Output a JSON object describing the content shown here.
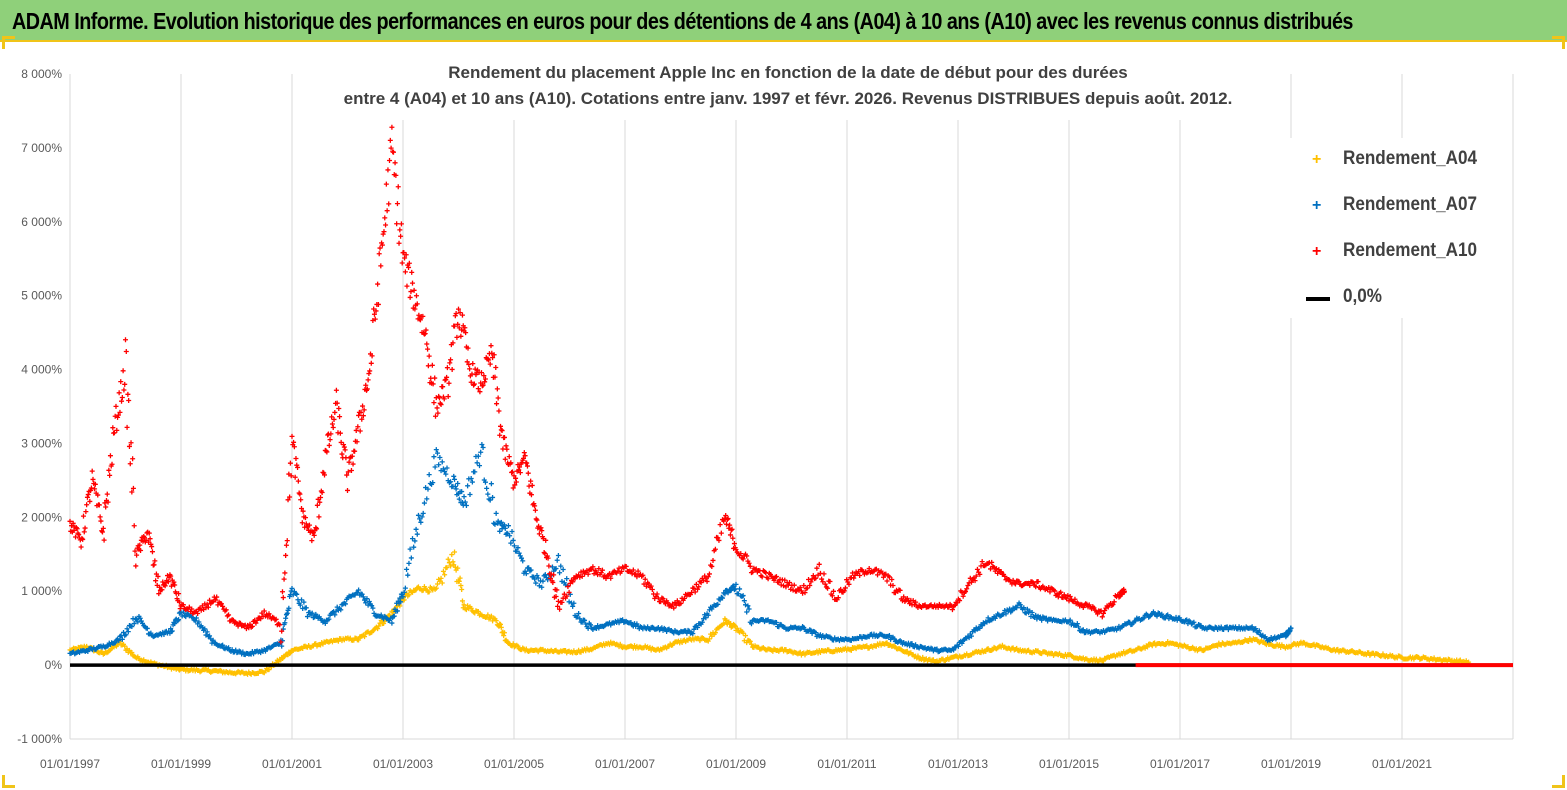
{
  "banner": {
    "title": "ADAM Informe. Evolution historique des performances en euros pour des détentions de 4 ans (A04) à 10 ans (A10) avec les revenus connus distribués"
  },
  "colors": {
    "banner_bg": "#8fd07a",
    "accent": "#f0c419",
    "A04": "#ffc000",
    "A07": "#0070c0",
    "A10": "#ff0000",
    "zero": "#000000"
  },
  "chart_data": {
    "type": "scatter",
    "title_line1": "Rendement du placement Apple Inc en fonction de la date de début pour des durées",
    "title_line2": "entre 4 (A04) et 10 ans (A10).  Cotations entre janv. 1997 et févr. 2026. Revenus  DISTRIBUES depuis août. 2012.",
    "ylim": [
      -1000,
      8000
    ],
    "xlim": [
      1997.0,
      2023.0
    ],
    "y_ticks": [
      {
        "value": 8000,
        "label": "8 000%"
      },
      {
        "value": 7000,
        "label": "7 000%"
      },
      {
        "value": 6000,
        "label": "6 000%"
      },
      {
        "value": 5000,
        "label": "5 000%"
      },
      {
        "value": 4000,
        "label": "4 000%"
      },
      {
        "value": 3000,
        "label": "3 000%"
      },
      {
        "value": 2000,
        "label": "2 000%"
      },
      {
        "value": 1000,
        "label": "1 000%"
      },
      {
        "value": 0,
        "label": "0%"
      },
      {
        "value": -1000,
        "label": "-1 000%"
      }
    ],
    "x_ticks": [
      {
        "value": 1997,
        "label": "01/01/1997"
      },
      {
        "value": 1999,
        "label": "01/01/1999"
      },
      {
        "value": 2001,
        "label": "01/01/2001"
      },
      {
        "value": 2003,
        "label": "01/01/2003"
      },
      {
        "value": 2005,
        "label": "01/01/2005"
      },
      {
        "value": 2007,
        "label": "01/01/2007"
      },
      {
        "value": 2009,
        "label": "01/01/2009"
      },
      {
        "value": 2011,
        "label": "01/01/2011"
      },
      {
        "value": 2013,
        "label": "01/01/2013"
      },
      {
        "value": 2015,
        "label": "01/01/2015"
      },
      {
        "value": 2017,
        "label": "01/01/2017"
      },
      {
        "value": 2019,
        "label": "01/01/2019"
      },
      {
        "value": 2021,
        "label": "01/01/2021"
      }
    ],
    "gridlines": "vertical",
    "legend_position": "top-right",
    "legend": [
      "Rendement_A04",
      "Rendement_A07",
      "Rendement_A10",
      "0,0%"
    ],
    "series": [
      {
        "name": "Rendement_A04",
        "color": "#ffc000",
        "x": [
          1997.0,
          1997.3,
          1997.6,
          1997.9,
          1998.2,
          1998.5,
          1998.8,
          1999.0,
          1999.3,
          1999.6,
          1999.9,
          2000.2,
          2000.5,
          2000.8,
          2001.0,
          2001.3,
          2001.6,
          2001.9,
          2002.2,
          2002.5,
          2002.8,
          2003.0,
          2003.3,
          2003.6,
          2003.9,
          2004.1,
          2004.4,
          2004.7,
          2004.9,
          2005.2,
          2005.5,
          2005.8,
          2006.1,
          2006.4,
          2006.7,
          2007.0,
          2007.3,
          2007.6,
          2007.9,
          2008.2,
          2008.5,
          2008.8,
          2009.0,
          2009.3,
          2009.6,
          2009.9,
          2010.2,
          2010.5,
          2010.8,
          2011.1,
          2011.4,
          2011.7,
          2012.0,
          2012.3,
          2012.6,
          2012.9,
          2013.2,
          2013.5,
          2013.8,
          2014.1,
          2014.4,
          2014.7,
          2015.0,
          2015.3,
          2015.6,
          2015.9,
          2016.2,
          2016.5,
          2016.8,
          2017.1,
          2017.4,
          2017.7,
          2018.0,
          2018.3,
          2018.6,
          2018.9,
          2019.2,
          2019.5,
          2019.8,
          2020.1,
          2020.4,
          2020.7,
          2021.0,
          2021.3,
          2021.6,
          2021.9,
          2022.2
        ],
        "y": [
          200,
          250,
          150,
          300,
          100,
          20,
          -30,
          -60,
          -70,
          -80,
          -100,
          -110,
          -90,
          80,
          200,
          250,
          300,
          350,
          350,
          500,
          700,
          900,
          1050,
          1000,
          1500,
          800,
          700,
          600,
          300,
          200,
          200,
          180,
          180,
          220,
          300,
          250,
          250,
          200,
          300,
          350,
          350,
          600,
          500,
          250,
          200,
          200,
          150,
          180,
          200,
          220,
          250,
          300,
          200,
          100,
          50,
          100,
          150,
          200,
          250,
          200,
          180,
          150,
          130,
          80,
          60,
          150,
          200,
          280,
          300,
          250,
          200,
          280,
          300,
          350,
          280,
          250,
          300,
          250,
          200,
          180,
          150,
          130,
          100,
          100,
          80,
          60,
          40
        ]
      },
      {
        "name": "Rendement_A07",
        "color": "#0070c0",
        "x": [
          1997.0,
          1997.3,
          1997.6,
          1997.9,
          1998.2,
          1998.5,
          1998.8,
          1999.0,
          1999.3,
          1999.6,
          1999.9,
          2000.2,
          2000.5,
          2000.8,
          2001.0,
          2001.3,
          2001.6,
          2001.9,
          2002.2,
          2002.5,
          2002.8,
          2003.0,
          2003.3,
          2003.6,
          2003.9,
          2004.1,
          2004.4,
          2004.7,
          2004.9,
          2005.2,
          2005.5,
          2005.8,
          2006.1,
          2006.4,
          2006.7,
          2007.0,
          2007.3,
          2007.6,
          2007.9,
          2008.2,
          2008.5,
          2008.8,
          2009.0,
          2009.3,
          2009.6,
          2009.9,
          2010.2,
          2010.5,
          2010.8,
          2011.1,
          2011.4,
          2011.7,
          2012.0,
          2012.3,
          2012.6,
          2012.9,
          2013.2,
          2013.5,
          2013.8,
          2014.1,
          2014.4,
          2014.7,
          2015.0,
          2015.3,
          2015.6,
          2015.9,
          2016.2,
          2016.5,
          2016.8,
          2017.1,
          2017.4,
          2017.7,
          2018.0,
          2018.3,
          2018.6,
          2018.9,
          2019.0
        ],
        "y": [
          150,
          200,
          250,
          350,
          650,
          400,
          450,
          700,
          600,
          300,
          200,
          150,
          200,
          300,
          1000,
          700,
          600,
          800,
          1000,
          700,
          600,
          1000,
          2000,
          2800,
          2500,
          2200,
          2900,
          1900,
          1800,
          1300,
          1100,
          1400,
          700,
          500,
          550,
          600,
          500,
          500,
          450,
          450,
          700,
          1000,
          1050,
          600,
          600,
          500,
          500,
          400,
          350,
          350,
          400,
          400,
          300,
          250,
          200,
          200,
          400,
          600,
          700,
          800,
          650,
          600,
          600,
          450,
          450,
          500,
          600,
          700,
          650,
          600,
          500,
          500,
          500,
          500,
          350,
          400,
          500
        ]
      },
      {
        "name": "Rendement_A10",
        "color": "#ff0000",
        "x": [
          1997.0,
          1997.2,
          1997.4,
          1997.6,
          1997.8,
          1998.0,
          1998.2,
          1998.4,
          1998.6,
          1998.8,
          1999.0,
          1999.3,
          1999.6,
          1999.9,
          2000.2,
          2000.5,
          2000.8,
          2001.0,
          2001.2,
          2001.4,
          2001.6,
          2001.8,
          2002.0,
          2002.2,
          2002.4,
          2002.6,
          2002.8,
          2003.0,
          2003.2,
          2003.4,
          2003.6,
          2003.8,
          2004.0,
          2004.2,
          2004.4,
          2004.6,
          2004.8,
          2005.0,
          2005.2,
          2005.4,
          2005.6,
          2005.8,
          2006.1,
          2006.4,
          2006.7,
          2007.0,
          2007.3,
          2007.6,
          2007.9,
          2008.2,
          2008.5,
          2008.8,
          2009.0,
          2009.3,
          2009.6,
          2009.9,
          2010.2,
          2010.5,
          2010.8,
          2011.1,
          2011.4,
          2011.7,
          2012.0,
          2012.3,
          2012.6,
          2012.9,
          2013.2,
          2013.5,
          2013.8,
          2014.1,
          2014.4,
          2014.7,
          2015.0,
          2015.3,
          2015.6,
          2015.9,
          2016.0
        ],
        "y": [
          1900,
          1700,
          2500,
          1800,
          3200,
          4000,
          1500,
          1800,
          1000,
          1200,
          800,
          700,
          900,
          600,
          500,
          700,
          550,
          3000,
          2000,
          1700,
          2800,
          3500,
          2500,
          3200,
          4000,
          5500,
          7000,
          5500,
          5000,
          4500,
          3500,
          3800,
          4800,
          4000,
          3800,
          4200,
          3000,
          2500,
          2800,
          2000,
          1500,
          800,
          1200,
          1300,
          1200,
          1300,
          1200,
          900,
          800,
          1000,
          1200,
          2000,
          1600,
          1300,
          1200,
          1100,
          1000,
          1300,
          900,
          1200,
          1300,
          1200,
          900,
          800,
          800,
          800,
          1100,
          1400,
          1200,
          1100,
          1100,
          1000,
          900,
          800,
          700,
          950,
          1000
        ]
      },
      {
        "name": "0,0%",
        "color": "#000000",
        "x": [
          1997.0,
          2023.0
        ],
        "y": [
          0,
          0
        ]
      }
    ],
    "zero_tail": {
      "color": "#ff0000",
      "x_start": 2016.2,
      "x_end": 2023.0,
      "value": 0
    }
  }
}
